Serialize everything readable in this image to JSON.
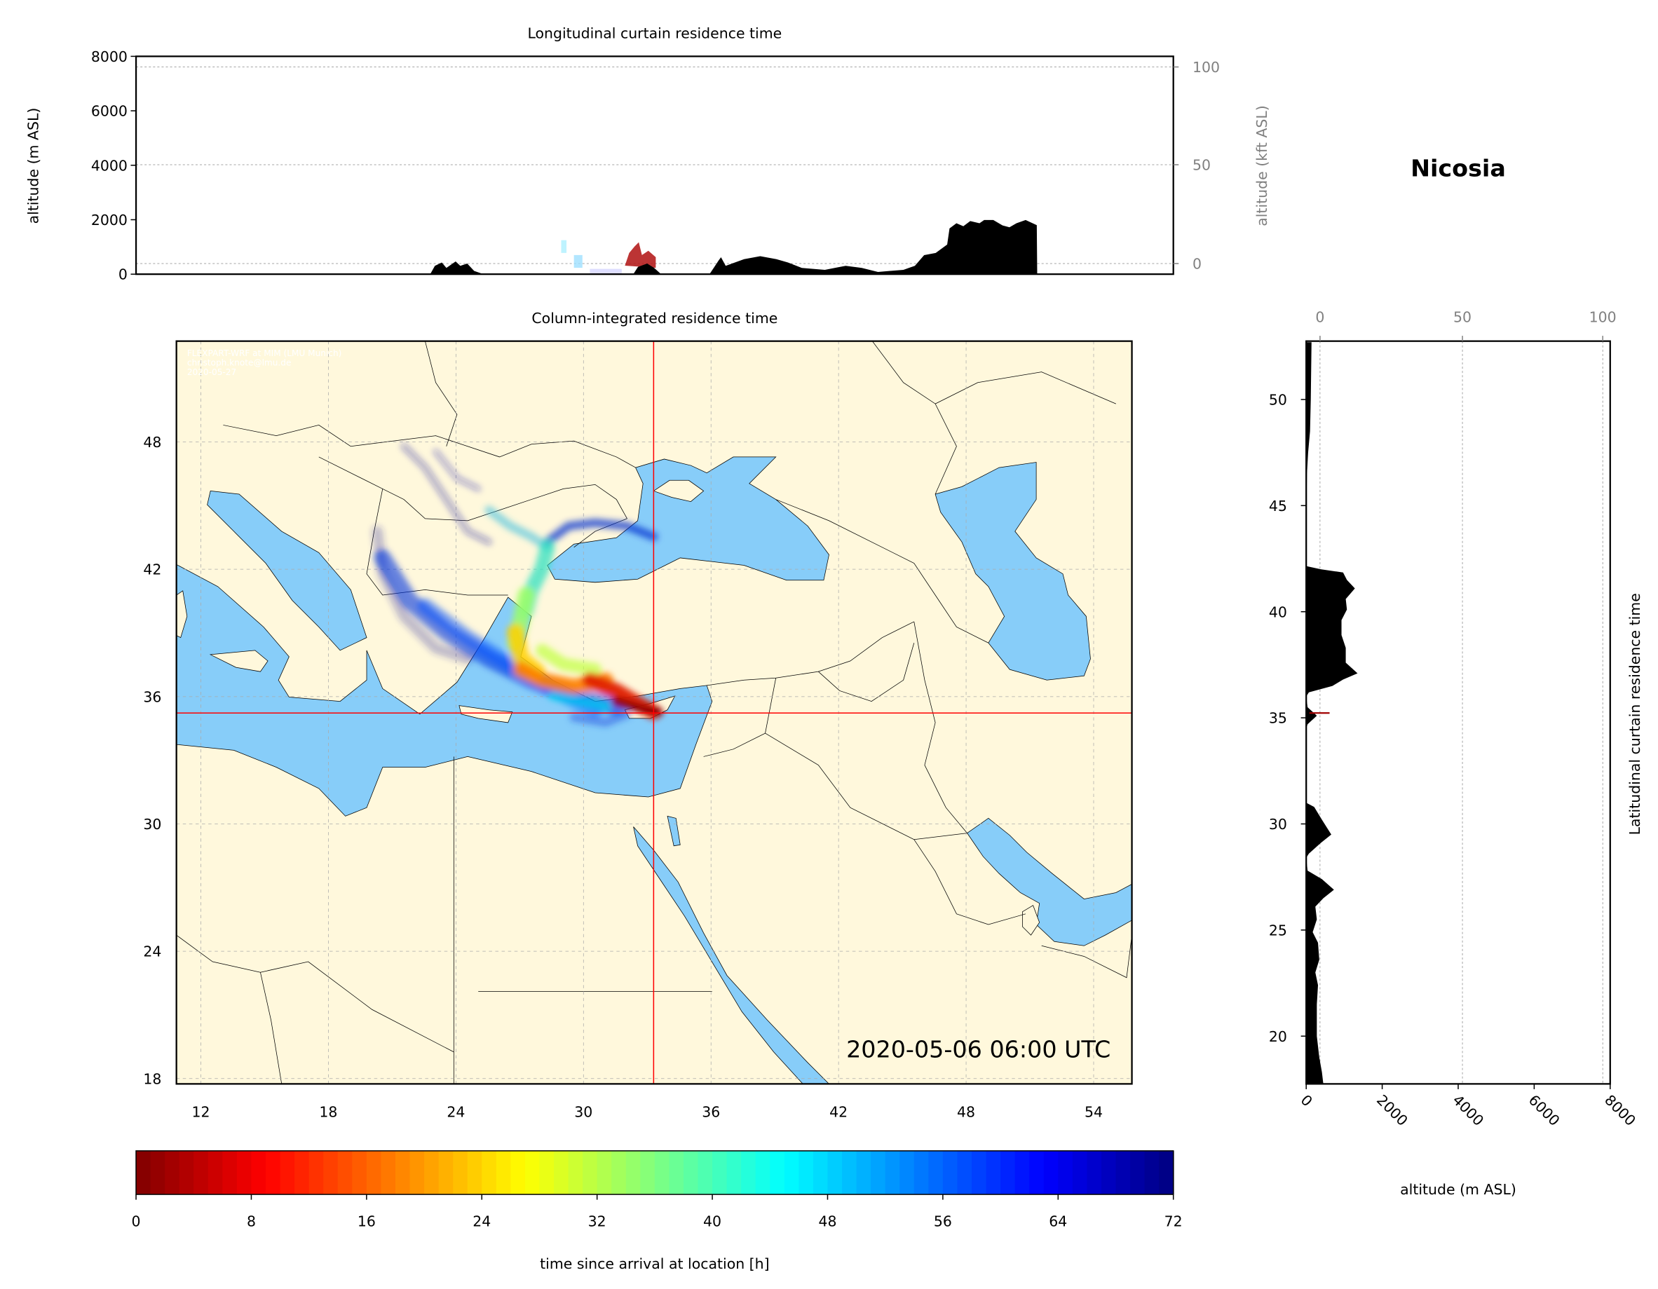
{
  "station": "Nicosia",
  "colors": {
    "land": "#fff8dc",
    "sea": "#87cdf9",
    "crosshair": "#ff0000",
    "terrain": "#000000"
  },
  "chart_data": [
    {
      "panel": "longitudinal-curtain",
      "type": "area",
      "title": "Longitudinal curtain residence time",
      "ylabel": "altitude (m ASL)",
      "ylabel_right": "altitude (kft ASL)",
      "ylim": [
        0,
        8000
      ],
      "yticks": [
        "0",
        "2000",
        "4000",
        "6000",
        "8000"
      ],
      "yticks_right": [
        "0",
        "50",
        "100"
      ],
      "xlim": [
        10.85,
        55.8
      ],
      "terrain": {
        "lon": [
          23.6,
          23.8,
          24.1,
          24.3,
          24.7,
          24.9,
          25.2,
          25.5,
          25.9,
          32.4,
          32.6,
          33.0,
          33.3,
          33.6,
          35.7,
          36.1,
          36.2,
          36.4,
          37.2,
          37.9,
          38.6,
          39.1,
          39.7,
          40.7,
          41.6,
          42.3,
          43.0,
          44.1,
          44.6,
          45.0,
          45.5,
          46.0,
          46.1,
          46.4,
          46.7,
          47.0,
          47.4,
          47.6,
          48.0,
          48.4,
          48.7,
          49.0,
          49.4,
          49.7,
          49.88,
          49.9
        ],
        "altitude": [
          0,
          310,
          430,
          230,
          470,
          310,
          390,
          120,
          0,
          0,
          270,
          390,
          230,
          0,
          0,
          510,
          620,
          310,
          550,
          660,
          550,
          430,
          230,
          160,
          310,
          230,
          80,
          160,
          310,
          700,
          780,
          1090,
          1680,
          1870,
          1760,
          1950,
          1870,
          1990,
          1990,
          1790,
          1720,
          1870,
          1990,
          1870,
          1800,
          0
        ]
      }
    },
    {
      "panel": "column-integrated",
      "type": "heatmap",
      "title": "Column-integrated residence time",
      "xticks": [
        "12",
        "18",
        "24",
        "30",
        "36",
        "42",
        "48",
        "54"
      ],
      "yticks": [
        "18",
        "24",
        "30",
        "36",
        "42",
        "48"
      ],
      "xlim": [
        10.85,
        55.8
      ],
      "ylim": [
        17.75,
        52.75
      ],
      "grid": true,
      "crosshair": {
        "lon": 33.36,
        "lat": 35.17
      },
      "watermark": [
        "FLEXPART-WRF at MIM (LMU Munich)",
        "christoph.knote@lmu.de",
        "2020-05-27"
      ],
      "timestamp": "2020-05-06 06:00 UTC"
    },
    {
      "panel": "latitudinal-curtain",
      "type": "area",
      "ylabel": "Latitudinal curtain residence time",
      "xlabel": "altitude (m ASL)",
      "xlim": [
        0,
        8000
      ],
      "xticks": [
        "0",
        "2000",
        "4000",
        "6000",
        "8000"
      ],
      "xticks_top": [
        "0",
        "50",
        "100"
      ],
      "yticks": [
        "20",
        "25",
        "30",
        "35",
        "40",
        "45",
        "50"
      ],
      "ylim": [
        17.75,
        52.75
      ],
      "terrain": {
        "lat": [
          52.7,
          50,
          48.5,
          47.5,
          46.5,
          44,
          42.2,
          42.15,
          42.0,
          41.85,
          41.5,
          41.1,
          40.6,
          40.1,
          39.6,
          38.9,
          38.3,
          37.6,
          37.1,
          36.8,
          36.5,
          36.2,
          36.0,
          35.5,
          35.1,
          34.7,
          34.5,
          31.0,
          30.8,
          30.2,
          29.5,
          29.1,
          28.6,
          28.4,
          27.8,
          27.4,
          26.9,
          26.5,
          26.1,
          25.5,
          24.9,
          24.4,
          23.6,
          23.0,
          22.4,
          21.5,
          20.0,
          19.0,
          18.3,
          17.75
        ],
        "altitude": [
          140,
          120,
          100,
          50,
          20,
          0,
          0,
          0,
          380,
          970,
          1070,
          1280,
          1040,
          1070,
          930,
          930,
          1040,
          1040,
          1350,
          970,
          690,
          70,
          0,
          35,
          280,
          35,
          0,
          0,
          210,
          415,
          660,
          380,
          70,
          0,
          35,
          415,
          730,
          450,
          240,
          280,
          170,
          310,
          345,
          240,
          310,
          280,
          280,
          345,
          415,
          450
        ]
      }
    },
    {
      "panel": "colorbar",
      "type": "colorbar",
      "label": "time since arrival at location [h]",
      "colormap": "jet_r",
      "range": [
        0,
        72
      ],
      "ticks": [
        "0",
        "8",
        "16",
        "24",
        "32",
        "40",
        "48",
        "56",
        "64",
        "72"
      ]
    }
  ]
}
